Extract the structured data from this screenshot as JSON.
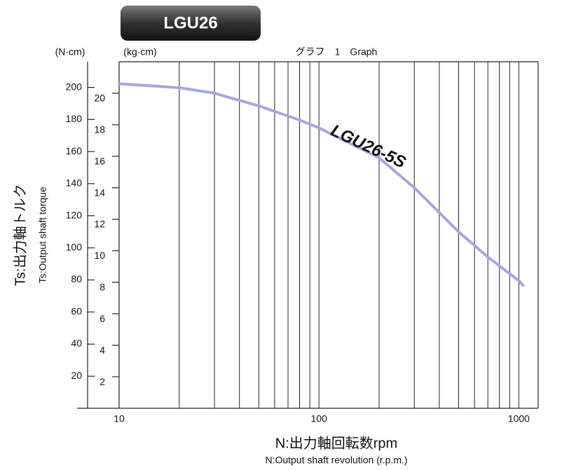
{
  "chart_data": {
    "type": "line",
    "title": "LGU26",
    "subtitle": "グラフ　1　Graph",
    "x_label": "N:出力軸回転数rpm",
    "x_label_en": "N:Output shaft revolution (r.p.m.)",
    "y_label": "Ts:出力軸トルク",
    "y_label_en": "Ts:Output shaft torque",
    "y_unit": "(kg·cm)",
    "y2_unit": "(N·cm)",
    "log_x": true,
    "x": [
      10,
      20,
      30,
      50,
      80,
      100,
      200,
      300,
      500,
      700,
      1000,
      1050
    ],
    "series": [
      {
        "name": "LGU26-5S",
        "color": "#a9a6dc",
        "axis": "y",
        "values": [
          20.6,
          20.35,
          20.0,
          19.2,
          18.3,
          17.8,
          15.9,
          14.0,
          11.2,
          9.6,
          8.1,
          7.8
        ]
      }
    ],
    "xlim": [
      10,
      1250
    ],
    "xticks": [
      10,
      100,
      1000
    ],
    "xminor": [
      20,
      30,
      40,
      50,
      60,
      70,
      80,
      90,
      200,
      300,
      400,
      500,
      600,
      700,
      800,
      900
    ],
    "ylim": [
      0,
      22
    ],
    "yticks": [
      2,
      4,
      6,
      8,
      10,
      12,
      14,
      16,
      18,
      20
    ],
    "y2lim": [
      0,
      216
    ],
    "y2ticks": [
      20,
      40,
      60,
      80,
      100,
      120,
      140,
      160,
      180,
      200
    ]
  }
}
